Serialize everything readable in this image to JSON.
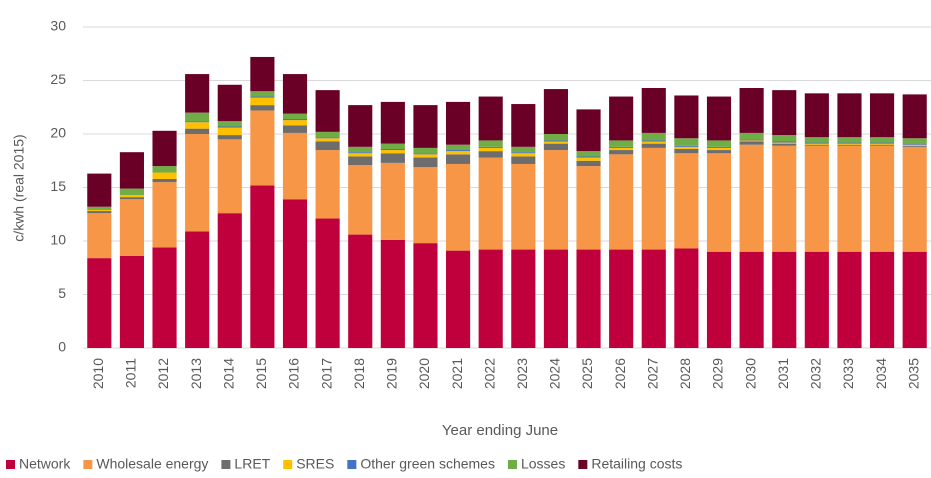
{
  "chart_data": {
    "type": "stacked_bar",
    "y_label": "c/kwh (real 2015)",
    "x_label": "Year ending June",
    "categories": [
      "2010",
      "2011",
      "2012",
      "2013",
      "2014",
      "2015",
      "2016",
      "2017",
      "2018",
      "2019",
      "2020",
      "2021",
      "2022",
      "2023",
      "2024",
      "2025",
      "2026",
      "2027",
      "2028",
      "2029",
      "2030",
      "2031",
      "2032",
      "2033",
      "2034",
      "2035"
    ],
    "series": [
      {
        "name": "Network",
        "color": "#c0003c",
        "values": [
          8.4,
          8.6,
          9.4,
          10.9,
          12.6,
          15.2,
          13.9,
          12.1,
          10.6,
          10.1,
          9.8,
          9.1,
          9.2,
          9.2,
          9.2,
          9.2,
          9.2,
          9.2,
          9.3,
          9.0,
          9.0,
          9.0,
          9.0,
          9.0,
          9.0,
          9.0
        ]
      },
      {
        "name": "Wholesale energy",
        "color": "#f79646",
        "values": [
          4.2,
          5.3,
          6.1,
          9.1,
          6.9,
          7.0,
          6.2,
          6.4,
          6.5,
          7.2,
          7.1,
          8.1,
          8.6,
          8.0,
          9.3,
          7.8,
          8.9,
          9.5,
          8.9,
          9.2,
          10.0,
          9.9,
          9.9,
          9.9,
          9.9,
          9.8
        ]
      },
      {
        "name": "LRET",
        "color": "#6d6d6d",
        "values": [
          0.2,
          0.2,
          0.3,
          0.5,
          0.4,
          0.5,
          0.7,
          0.8,
          0.8,
          0.9,
          0.9,
          0.9,
          0.6,
          0.7,
          0.6,
          0.5,
          0.4,
          0.4,
          0.4,
          0.3,
          0.3,
          0.2,
          0.1,
          0.1,
          0.1,
          0.1
        ]
      },
      {
        "name": "SRES",
        "color": "#ffc000",
        "values": [
          0.1,
          0.2,
          0.6,
          0.6,
          0.7,
          0.7,
          0.5,
          0.3,
          0.3,
          0.3,
          0.3,
          0.3,
          0.3,
          0.3,
          0.2,
          0.3,
          0.2,
          0.2,
          0.2,
          0.2,
          0.1,
          0.1,
          0.1,
          0.1,
          0.1,
          0.1
        ]
      },
      {
        "name": "Other green schemes",
        "color": "#4472c4",
        "values": [
          0,
          0,
          0,
          0.1,
          0.1,
          0.1,
          0.1,
          0.1,
          0.1,
          0.1,
          0.1,
          0.1,
          0.1,
          0.1,
          0.1,
          0.1,
          0.1,
          0.1,
          0.1,
          0.1,
          0.1,
          0.1,
          0.1,
          0.1,
          0.1,
          0.1
        ]
      },
      {
        "name": "Losses",
        "color": "#70ad47",
        "values": [
          0.3,
          0.6,
          0.6,
          0.8,
          0.5,
          0.5,
          0.5,
          0.5,
          0.5,
          0.5,
          0.5,
          0.5,
          0.6,
          0.5,
          0.6,
          0.5,
          0.6,
          0.7,
          0.7,
          0.6,
          0.6,
          0.6,
          0.5,
          0.5,
          0.5,
          0.5
        ]
      },
      {
        "name": "Retailing costs",
        "color": "#6a0026",
        "values": [
          3.1,
          3.4,
          3.3,
          3.6,
          3.4,
          3.2,
          3.7,
          3.9,
          3.9,
          3.9,
          4.0,
          4.0,
          4.1,
          4.0,
          4.2,
          3.9,
          4.1,
          4.2,
          4.0,
          4.1,
          4.2,
          4.2,
          4.1,
          4.1,
          4.1,
          4.1
        ]
      }
    ],
    "ylim": [
      0,
      30
    ],
    "yticks": [
      0,
      5,
      10,
      15,
      20,
      25,
      30
    ],
    "grid": true,
    "legend": "bottom"
  }
}
